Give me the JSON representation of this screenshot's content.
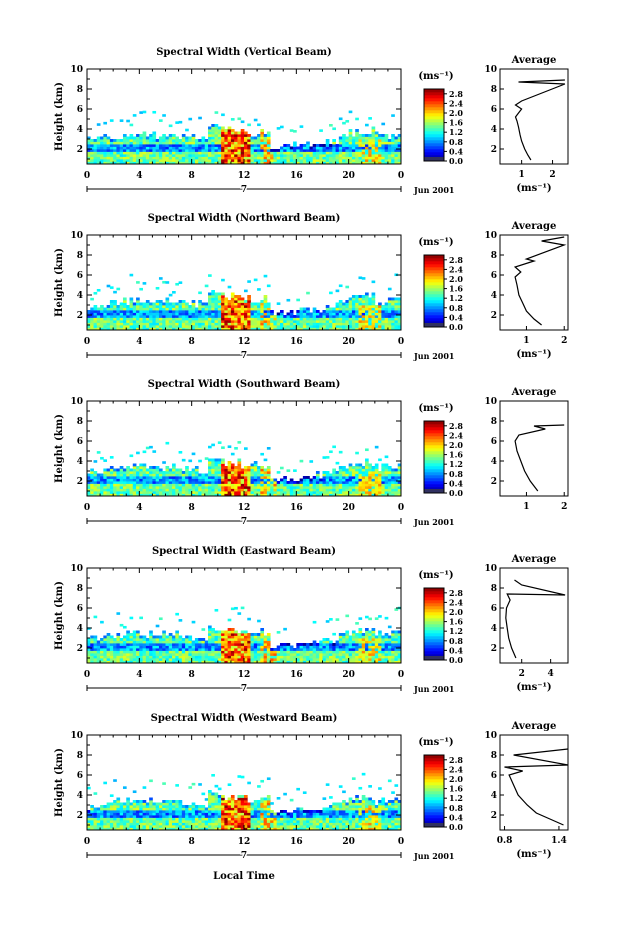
{
  "page": {
    "x_axis_title": "Local Time"
  },
  "chart_data": [
    {
      "type": "heatmap",
      "title": "Spectral Width (Vertical Beam)",
      "ylabel": "Height (km)",
      "x_ticks": [
        "0",
        "4",
        "8",
        "12",
        "16",
        "20",
        "0"
      ],
      "xlim": [
        0,
        24
      ],
      "y_ticks": [
        "2",
        "4",
        "6",
        "8",
        "10"
      ],
      "ylim": [
        0.5,
        10
      ],
      "day_label": "7",
      "date_label": "Jun 2001",
      "colorbar": {
        "unit": "(ms⁻¹)",
        "ticks": [
          "0.0",
          "0.4",
          "0.8",
          "1.2",
          "1.6",
          "2.0",
          "2.4",
          "2.8"
        ],
        "range": [
          0,
          3.0
        ]
      },
      "average": {
        "title": "Average",
        "xlabel": "(ms⁻¹)",
        "x_ticks": [
          "1",
          "2"
        ],
        "xlim": [
          0.3,
          2.5
        ],
        "y_ticks": [
          "2",
          "4",
          "6",
          "8",
          "10"
        ],
        "ylim": [
          0.5,
          10
        ],
        "profile": [
          [
            1.3,
            0.9
          ],
          [
            1.2,
            1.4
          ],
          [
            1.1,
            2.0
          ],
          [
            1.0,
            2.8
          ],
          [
            0.95,
            3.4
          ],
          [
            0.9,
            4.2
          ],
          [
            0.85,
            4.8
          ],
          [
            0.8,
            5.2
          ],
          [
            0.9,
            5.6
          ],
          [
            1.0,
            6.0
          ],
          [
            0.8,
            6.4
          ],
          [
            1.0,
            6.8
          ],
          [
            2.4,
            8.5
          ],
          [
            0.9,
            8.7
          ],
          [
            2.4,
            8.9
          ]
        ]
      }
    },
    {
      "type": "heatmap",
      "title": "Spectral Width (Northward Beam)",
      "ylabel": "Height (km)",
      "x_ticks": [
        "0",
        "4",
        "8",
        "12",
        "16",
        "20",
        "0"
      ],
      "xlim": [
        0,
        24
      ],
      "y_ticks": [
        "2",
        "4",
        "6",
        "8",
        "10"
      ],
      "ylim": [
        0.5,
        10
      ],
      "day_label": "7",
      "date_label": "Jun 2001",
      "colorbar": {
        "unit": "(ms⁻¹)",
        "ticks": [
          "0.0",
          "0.4",
          "0.8",
          "1.2",
          "1.6",
          "2.0",
          "2.4",
          "2.8"
        ],
        "range": [
          0,
          3.0
        ]
      },
      "average": {
        "title": "Average",
        "xlabel": "(ms⁻¹)",
        "x_ticks": [
          "1",
          "2"
        ],
        "xlim": [
          0.3,
          2.1
        ],
        "y_ticks": [
          "2",
          "4",
          "6",
          "8",
          "10"
        ],
        "ylim": [
          0.5,
          10
        ],
        "profile": [
          [
            1.4,
            1.0
          ],
          [
            1.2,
            1.6
          ],
          [
            1.0,
            2.4
          ],
          [
            0.9,
            3.2
          ],
          [
            0.8,
            4.0
          ],
          [
            0.75,
            5.0
          ],
          [
            0.7,
            5.8
          ],
          [
            0.85,
            6.3
          ],
          [
            0.7,
            6.8
          ],
          [
            1.2,
            7.4
          ],
          [
            1.0,
            7.6
          ],
          [
            2.0,
            9.0
          ],
          [
            1.4,
            9.4
          ],
          [
            2.0,
            9.8
          ]
        ]
      }
    },
    {
      "type": "heatmap",
      "title": "Spectral Width (Southward Beam)",
      "ylabel": "Height (km)",
      "x_ticks": [
        "0",
        "4",
        "8",
        "12",
        "16",
        "20",
        "0"
      ],
      "xlim": [
        0,
        24
      ],
      "y_ticks": [
        "2",
        "4",
        "6",
        "8",
        "10"
      ],
      "ylim": [
        0.5,
        10
      ],
      "day_label": "7",
      "date_label": "Jun 2001",
      "colorbar": {
        "unit": "(ms⁻¹)",
        "ticks": [
          "0.0",
          "0.4",
          "0.8",
          "1.2",
          "1.6",
          "2.0",
          "2.4",
          "2.8"
        ],
        "range": [
          0,
          3.0
        ]
      },
      "average": {
        "title": "Average",
        "xlabel": "",
        "x_ticks": [
          "1",
          "2"
        ],
        "xlim": [
          0.3,
          2.1
        ],
        "y_ticks": [
          "2",
          "4",
          "6",
          "8",
          "10"
        ],
        "ylim": [
          0.5,
          10
        ],
        "profile": [
          [
            1.3,
            1.0
          ],
          [
            1.1,
            2.0
          ],
          [
            0.95,
            3.0
          ],
          [
            0.85,
            4.0
          ],
          [
            0.75,
            5.0
          ],
          [
            0.7,
            6.0
          ],
          [
            0.8,
            6.6
          ],
          [
            1.5,
            7.2
          ],
          [
            1.2,
            7.5
          ],
          [
            2.0,
            7.6
          ]
        ]
      }
    },
    {
      "type": "heatmap",
      "title": "Spectral Width (Eastward Beam)",
      "ylabel": "Height (km)",
      "x_ticks": [
        "0",
        "4",
        "8",
        "12",
        "16",
        "20",
        "0"
      ],
      "xlim": [
        0,
        24
      ],
      "y_ticks": [
        "2",
        "4",
        "6",
        "8",
        "10"
      ],
      "ylim": [
        0.5,
        10
      ],
      "day_label": "7",
      "date_label": "Jun 2001",
      "colorbar": {
        "unit": "(ms⁻¹)",
        "ticks": [
          "0.0",
          "0.4",
          "0.8",
          "1.2",
          "1.6",
          "2.0",
          "2.4",
          "2.8"
        ],
        "range": [
          0,
          3.0
        ]
      },
      "average": {
        "title": "Average",
        "xlabel": "(ms⁻¹)",
        "x_ticks": [
          "2",
          "4"
        ],
        "xlim": [
          0.5,
          5.2
        ],
        "y_ticks": [
          "2",
          "4",
          "6",
          "8",
          "10"
        ],
        "ylim": [
          0.5,
          10
        ],
        "profile": [
          [
            1.6,
            1.0
          ],
          [
            1.3,
            2.0
          ],
          [
            1.1,
            3.0
          ],
          [
            1.0,
            4.0
          ],
          [
            0.9,
            5.0
          ],
          [
            0.95,
            6.0
          ],
          [
            1.2,
            6.8
          ],
          [
            1.0,
            7.4
          ],
          [
            5.0,
            7.3
          ],
          [
            2.0,
            8.3
          ],
          [
            1.5,
            8.8
          ]
        ]
      }
    },
    {
      "type": "heatmap",
      "title": "Spectral Width (Westward Beam)",
      "ylabel": "Height (km)",
      "x_ticks": [
        "0",
        "4",
        "8",
        "12",
        "16",
        "20",
        "0"
      ],
      "xlim": [
        0,
        24
      ],
      "y_ticks": [
        "2",
        "4",
        "6",
        "8",
        "10"
      ],
      "ylim": [
        0.5,
        10
      ],
      "day_label": "7",
      "date_label": "Jun 2001",
      "colorbar": {
        "unit": "(ms⁻¹)",
        "ticks": [
          "0.0",
          "0.4",
          "0.8",
          "1.2",
          "1.6",
          "2.0",
          "2.4",
          "2.8"
        ],
        "range": [
          0,
          3.0
        ]
      },
      "average": {
        "title": "Average",
        "xlabel": "(ms⁻¹)",
        "x_ticks": [
          "0.8",
          "1.4"
        ],
        "xlim": [
          0.75,
          1.5
        ],
        "y_ticks": [
          "2",
          "4",
          "6",
          "8",
          "10"
        ],
        "ylim": [
          0.5,
          10
        ],
        "profile": [
          [
            1.45,
            1.0
          ],
          [
            1.3,
            1.6
          ],
          [
            1.15,
            2.2
          ],
          [
            1.05,
            3.0
          ],
          [
            0.95,
            4.0
          ],
          [
            0.9,
            5.0
          ],
          [
            0.85,
            6.0
          ],
          [
            1.0,
            6.4
          ],
          [
            0.8,
            6.8
          ],
          [
            1.5,
            7.0
          ],
          [
            0.9,
            8.0
          ],
          [
            1.2,
            8.3
          ],
          [
            1.5,
            8.6
          ]
        ]
      }
    }
  ]
}
